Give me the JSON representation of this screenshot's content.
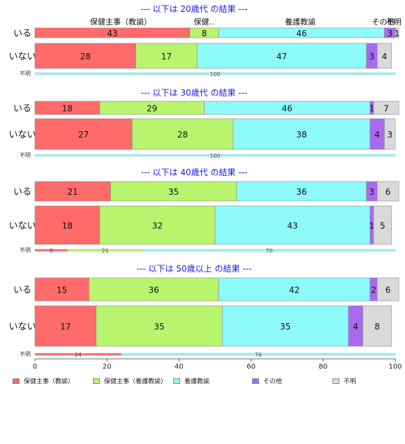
{
  "chart_data": {
    "type": "bar",
    "orientation": "horizontal",
    "stacked": "percent",
    "xlim": [
      0,
      100
    ],
    "x_ticks": [
      0,
      20,
      40,
      60,
      80,
      100
    ],
    "series": [
      {
        "name": "保健主事（教諭）",
        "color": "#FF6B6B"
      },
      {
        "name": "保健主事（養護教諭）",
        "color": "#B8F46E"
      },
      {
        "name": "養護教諭",
        "color": "#8EFAFA"
      },
      {
        "name": "その他",
        "color": "#A86BF0"
      },
      {
        "name": "不明",
        "color": "#D9D9D9"
      }
    ],
    "top_labels": [
      "保健主事（教諭）",
      "保健..",
      "養護教諭",
      "その他",
      "不明"
    ],
    "panels": [
      {
        "title": "--- 以下は 20歳代 の結果 ---",
        "rows": [
          {
            "label": "いる",
            "values": [
              43,
              8,
              46,
              3,
              1
            ]
          },
          {
            "label": "いない",
            "values": [
              28,
              17,
              47,
              3,
              4
            ]
          }
        ],
        "unknown": {
          "label": "不明",
          "values": [
            0,
            0,
            100,
            0,
            0
          ]
        }
      },
      {
        "title": "--- 以下は 30歳代 の結果 ---",
        "rows": [
          {
            "label": "いる",
            "values": [
              18,
              29,
              46,
              1,
              7
            ]
          },
          {
            "label": "いない",
            "values": [
              27,
              28,
              38,
              4,
              3
            ]
          }
        ],
        "unknown": {
          "label": "不明",
          "values": [
            0,
            0,
            100,
            0,
            0
          ]
        }
      },
      {
        "title": "--- 以下は 40歳代 の結果 ---",
        "rows": [
          {
            "label": "いる",
            "values": [
              21,
              35,
              36,
              3,
              6
            ]
          },
          {
            "label": "いない",
            "values": [
              18,
              32,
              43,
              1,
              5
            ]
          }
        ],
        "unknown": {
          "label": "不明",
          "values": [
            9,
            21,
            70,
            0,
            0
          ]
        }
      },
      {
        "title": "--- 以下は 50歳以上 の結果 ---",
        "rows": [
          {
            "label": "いる",
            "values": [
              15,
              36,
              42,
              2,
              6
            ]
          },
          {
            "label": "いない",
            "values": [
              17,
              35,
              35,
              4,
              8
            ]
          }
        ],
        "unknown": {
          "label": "不明",
          "values": [
            24,
            0,
            76,
            0,
            0
          ]
        }
      }
    ]
  }
}
